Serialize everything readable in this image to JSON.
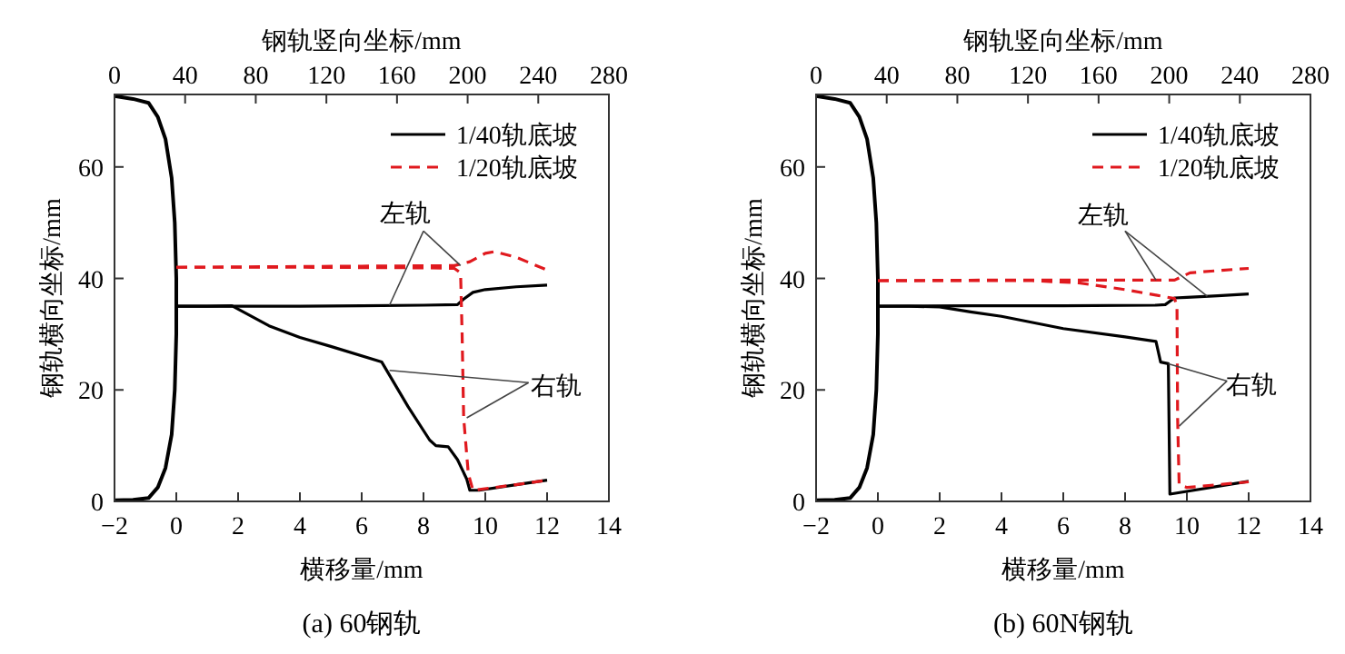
{
  "chart_data": [
    {
      "type": "line",
      "title": "(a) 60钢轨",
      "xlabel": "横移量/mm",
      "ylabel": "钢轨横向坐标/mm",
      "x2label": "钢轨竖向坐标/mm",
      "xlim": [
        -2,
        14
      ],
      "xticks": [
        -2,
        0,
        2,
        4,
        6,
        8,
        10,
        12,
        14
      ],
      "x2lim": [
        0,
        280
      ],
      "x2ticks": [
        0,
        40,
        80,
        120,
        160,
        200,
        240,
        280
      ],
      "ylim": [
        0,
        73
      ],
      "yticks": [
        0,
        20,
        40,
        60
      ],
      "grid": false,
      "legend": "top right",
      "series": [
        {
          "color": "#000000",
          "line_style": "solid",
          "x": [
            -2,
            -1.4,
            -0.9,
            -0.6,
            -0.35,
            -0.15,
            -0.05,
            0,
            0,
            -0.05,
            -0.15,
            -0.35,
            -0.6,
            -0.9,
            -1.4,
            -2
          ],
          "values": [
            72.7,
            72.2,
            71.5,
            69,
            65,
            58,
            50,
            40,
            30,
            20,
            12,
            6,
            2.5,
            0.6,
            0.3,
            0.2
          ]
        },
        {
          "name": "1/40轨底坡",
          "color": "#000000",
          "line_style": "solid",
          "x": [
            0,
            2,
            4,
            6,
            8,
            9.1,
            9.3,
            9.6,
            10,
            11,
            12
          ],
          "values": [
            35,
            35,
            35,
            35.1,
            35.2,
            35.3,
            36.3,
            37.5,
            38,
            38.5,
            38.8
          ]
        },
        {
          "color": "#000000",
          "line_style": "solid",
          "x": [
            0,
            1,
            1.8,
            3,
            4,
            5,
            6.65,
            7.5,
            8.2,
            8.4,
            8.8,
            9.1,
            9.4,
            9.5,
            9.8,
            11,
            12
          ],
          "values": [
            35,
            35,
            35.1,
            31.5,
            29.4,
            27.8,
            25,
            17,
            11,
            10,
            9.8,
            7.5,
            4,
            2,
            2,
            3,
            3.8
          ]
        },
        {
          "name": "1/20轨底坡",
          "color": "#e0191e",
          "line_style": "dashed",
          "x": [
            0,
            4,
            8,
            9,
            9.2,
            9.25,
            9.3,
            9.45,
            9.6,
            11,
            12
          ],
          "values": [
            42,
            42,
            41.9,
            41.8,
            41,
            30,
            15,
            5,
            2,
            3,
            3.8
          ]
        },
        {
          "color": "#e0191e",
          "line_style": "dashed",
          "x": [
            0,
            3,
            6,
            9,
            9.5,
            10,
            10.3,
            11,
            12
          ],
          "values": [
            42,
            42.1,
            42.2,
            42.3,
            43,
            44.5,
            44.8,
            43.8,
            41.5
          ]
        }
      ],
      "annotations": [
        {
          "text": "左轨",
          "x": 6.9,
          "y": 35.2
        },
        {
          "text": "右轨",
          "x": 6.9,
          "y": 23.5
        }
      ]
    },
    {
      "type": "line",
      "title": "(b) 60N钢轨",
      "xlabel": "横移量/mm",
      "ylabel": "钢轨横向坐标/mm",
      "x2label": "钢轨竖向坐标/mm",
      "xlim": [
        -2,
        14
      ],
      "xticks": [
        -2,
        0,
        2,
        4,
        6,
        8,
        10,
        12,
        14
      ],
      "x2lim": [
        0,
        280
      ],
      "x2ticks": [
        0,
        40,
        80,
        120,
        160,
        200,
        240,
        280
      ],
      "ylim": [
        0,
        73
      ],
      "yticks": [
        0,
        20,
        40,
        60
      ],
      "grid": false,
      "legend": "top right",
      "series": [
        {
          "color": "#000000",
          "line_style": "solid",
          "x": [
            -2,
            -1.4,
            -0.9,
            -0.6,
            -0.35,
            -0.15,
            -0.05,
            0,
            0,
            -0.05,
            -0.15,
            -0.35,
            -0.6,
            -0.9,
            -1.4,
            -2
          ],
          "values": [
            72.7,
            72.2,
            71.5,
            69,
            65,
            58,
            50,
            40,
            30,
            20,
            12,
            6,
            2.5,
            0.6,
            0.3,
            0.2
          ]
        },
        {
          "name": "1/40轨底坡",
          "color": "#000000",
          "line_style": "solid",
          "x": [
            0,
            3,
            6,
            9,
            9.3,
            9.6,
            10,
            11,
            12
          ],
          "values": [
            35,
            35.1,
            35.1,
            35.2,
            35.3,
            36.5,
            36.6,
            36.9,
            37.2
          ]
        },
        {
          "color": "#000000",
          "line_style": "solid",
          "x": [
            0,
            1,
            2,
            3,
            4,
            6,
            8,
            9,
            9.15,
            9.4,
            9.45,
            12
          ],
          "values": [
            35,
            35,
            34.9,
            34,
            33.2,
            31,
            29.5,
            28.7,
            25,
            24.7,
            1.3,
            3.6
          ]
        },
        {
          "name": "1/20轨底坡",
          "color": "#e0191e",
          "line_style": "dashed",
          "x": [
            0,
            5,
            6.5,
            8,
            9,
            9.6,
            9.68,
            9.7,
            9.75,
            10,
            11,
            12
          ],
          "values": [
            39.6,
            39.6,
            39.2,
            38,
            37,
            36.4,
            35,
            15,
            3,
            2.5,
            3,
            3.5
          ]
        },
        {
          "color": "#e0191e",
          "line_style": "dashed",
          "x": [
            0,
            4,
            8,
            9.6,
            10.1,
            11,
            12
          ],
          "values": [
            39.6,
            39.7,
            39.7,
            39.7,
            41,
            41.4,
            41.8
          ]
        }
      ],
      "annotations": [
        {
          "text": "左轨",
          "x": 9.0,
          "y": 39.7
        },
        {
          "text": "右轨",
          "x": 9.4,
          "y": 24.7
        }
      ]
    }
  ]
}
